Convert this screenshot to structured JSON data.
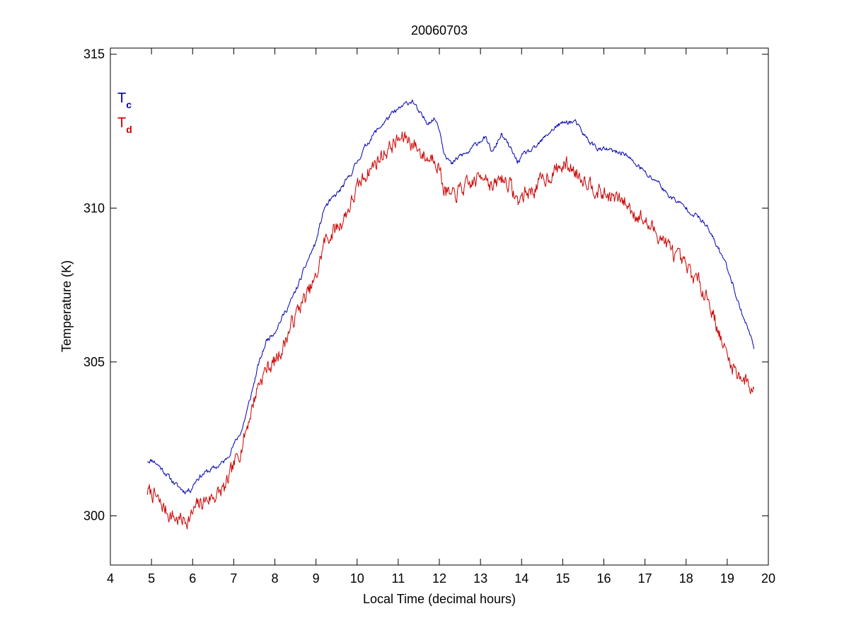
{
  "chart_data": {
    "type": "line",
    "title": "20060703",
    "xlabel": "Local Time (decimal hours)",
    "ylabel": "Temperature (K)",
    "xlim": [
      4,
      20
    ],
    "ylim": [
      298.4,
      315.2
    ],
    "xticks": [
      4,
      5,
      6,
      7,
      8,
      9,
      10,
      11,
      12,
      13,
      14,
      15,
      16,
      17,
      18,
      19,
      20
    ],
    "yticks": [
      300,
      305,
      310,
      315
    ],
    "grid": false,
    "legend_position": "top-left",
    "series": [
      {
        "name_main": "T",
        "name_sub": "c",
        "color": "#0000b0",
        "x": [
          4.9,
          5.05,
          5.2,
          5.4,
          5.6,
          5.8,
          5.95,
          6.1,
          6.3,
          6.6,
          6.8,
          7.0,
          7.2,
          7.4,
          7.6,
          7.8,
          8.0,
          8.2,
          8.4,
          8.6,
          8.8,
          9.0,
          9.2,
          9.4,
          9.6,
          9.8,
          10.0,
          10.2,
          10.4,
          10.6,
          10.8,
          11.0,
          11.2,
          11.35,
          11.5,
          11.7,
          11.9,
          12.0,
          12.1,
          12.3,
          12.5,
          12.7,
          12.9,
          13.1,
          13.3,
          13.5,
          13.7,
          13.9,
          14.1,
          14.3,
          14.5,
          14.7,
          14.9,
          15.1,
          15.3,
          15.5,
          15.7,
          15.9,
          16.1,
          16.3,
          16.5,
          16.7,
          16.9,
          17.1,
          17.3,
          17.5,
          17.7,
          17.9,
          18.1,
          18.3,
          18.5,
          18.7,
          18.9,
          19.1,
          19.3,
          19.5,
          19.65
        ],
        "y": [
          301.8,
          301.8,
          301.6,
          301.3,
          301.0,
          300.8,
          300.85,
          301.2,
          301.4,
          301.6,
          301.8,
          302.3,
          302.8,
          303.8,
          304.9,
          305.7,
          306.0,
          306.5,
          307.0,
          307.6,
          308.3,
          308.9,
          310.0,
          310.3,
          310.6,
          311.0,
          311.5,
          312.0,
          312.4,
          312.7,
          313.0,
          313.2,
          313.4,
          313.5,
          313.1,
          312.8,
          312.9,
          312.6,
          311.9,
          311.4,
          311.7,
          311.8,
          312.1,
          312.3,
          311.8,
          312.4,
          312.0,
          311.5,
          311.8,
          311.9,
          312.2,
          312.5,
          312.7,
          312.8,
          312.8,
          312.4,
          312.1,
          311.9,
          311.9,
          311.8,
          311.8,
          311.5,
          311.3,
          311.0,
          310.9,
          310.5,
          310.3,
          310.1,
          309.9,
          309.7,
          309.4,
          308.9,
          308.4,
          307.7,
          306.8,
          306.1,
          305.5
        ],
        "noise": 0.07,
        "seed": 11
      },
      {
        "name_main": "T",
        "name_sub": "d",
        "color": "#cc0000",
        "x": [
          4.9,
          5.05,
          5.2,
          5.4,
          5.6,
          5.8,
          5.95,
          6.1,
          6.3,
          6.6,
          6.8,
          7.0,
          7.2,
          7.4,
          7.6,
          7.8,
          8.0,
          8.2,
          8.4,
          8.6,
          8.8,
          9.0,
          9.2,
          9.4,
          9.6,
          9.8,
          10.0,
          10.2,
          10.4,
          10.6,
          10.8,
          11.0,
          11.2,
          11.35,
          11.5,
          11.7,
          11.9,
          12.0,
          12.1,
          12.3,
          12.5,
          12.7,
          12.9,
          13.1,
          13.3,
          13.5,
          13.7,
          13.9,
          14.1,
          14.3,
          14.5,
          14.7,
          14.9,
          15.1,
          15.3,
          15.5,
          15.7,
          15.9,
          16.1,
          16.3,
          16.5,
          16.7,
          16.9,
          17.1,
          17.3,
          17.5,
          17.7,
          17.9,
          18.1,
          18.3,
          18.5,
          18.7,
          18.9,
          19.1,
          19.3,
          19.5,
          19.65
        ],
        "y": [
          300.8,
          300.7,
          300.4,
          300.1,
          299.9,
          299.85,
          299.95,
          300.3,
          300.5,
          300.7,
          300.9,
          301.6,
          302.3,
          303.3,
          304.3,
          304.8,
          305.0,
          305.5,
          306.2,
          306.8,
          307.2,
          307.7,
          308.9,
          309.2,
          309.5,
          310.0,
          310.6,
          311.1,
          311.4,
          311.7,
          312.0,
          312.2,
          312.3,
          312.1,
          311.9,
          311.6,
          311.7,
          311.3,
          310.7,
          310.3,
          310.6,
          310.7,
          310.9,
          311.2,
          310.6,
          311.0,
          310.8,
          310.2,
          310.5,
          310.6,
          310.9,
          311.1,
          311.3,
          311.4,
          311.2,
          311.0,
          310.8,
          310.5,
          310.4,
          310.3,
          310.2,
          309.9,
          309.7,
          309.4,
          309.2,
          308.9,
          308.5,
          308.2,
          307.9,
          307.6,
          307.2,
          306.4,
          305.5,
          304.9,
          304.6,
          304.3,
          304.1
        ],
        "noise": 0.22,
        "seed": 7
      }
    ]
  }
}
